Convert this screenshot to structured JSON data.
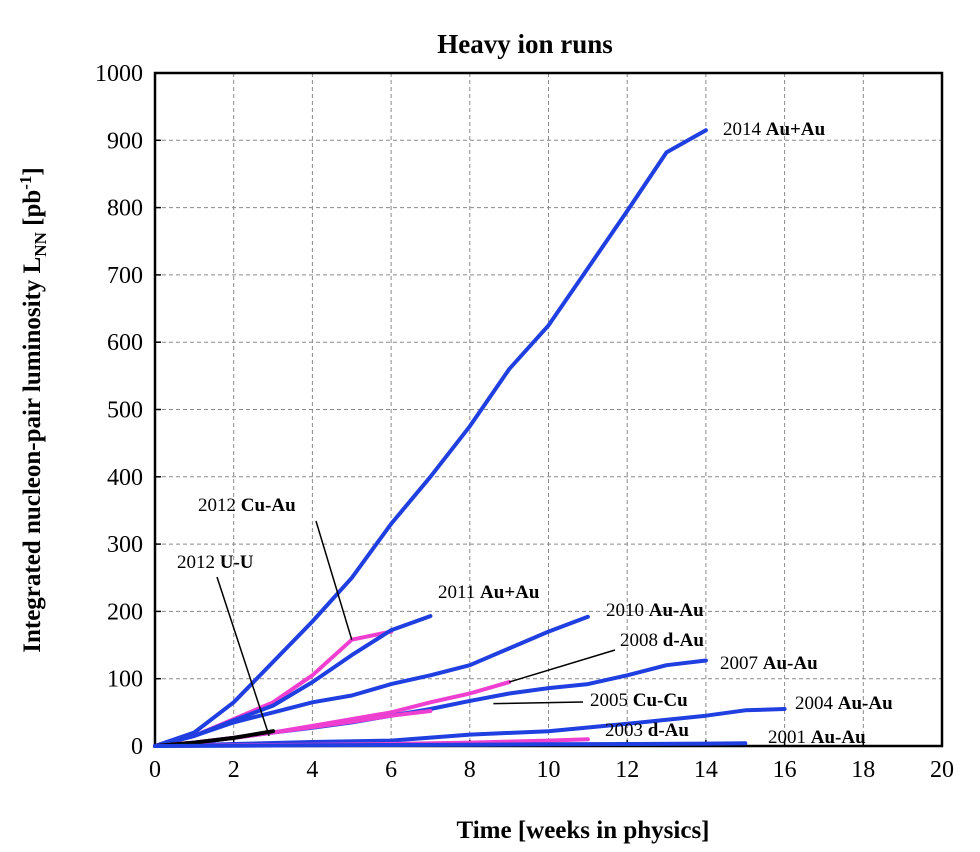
{
  "chart_data": {
    "type": "line",
    "title": "Heavy ion runs",
    "xlabel": "Time [weeks in physics]",
    "ylabel": {
      "main": "Integrated nucleon-pair luminosity L",
      "sub": "NN",
      "unit_open": " [pb",
      "unit_sup": "-1",
      "unit_close": "]"
    },
    "xlim": [
      0,
      20
    ],
    "ylim": [
      0,
      1000
    ],
    "xticks": [
      "0",
      "2",
      "4",
      "6",
      "8",
      "10",
      "12",
      "14",
      "16",
      "18",
      "20"
    ],
    "yticks": [
      "0",
      "100",
      "200",
      "300",
      "400",
      "500",
      "600",
      "700",
      "800",
      "900",
      "1000"
    ],
    "grid": true,
    "colors": {
      "blue": "#1f3fe0",
      "magenta": "#ef3fd0",
      "black": "#000000"
    },
    "series": [
      {
        "name": "2014 Au+Au",
        "year": "2014",
        "species": "Au+Au",
        "color": "#1f3fe0",
        "x": [
          0,
          1,
          2,
          3,
          4,
          5,
          6,
          7,
          8,
          9,
          10,
          11,
          12,
          13,
          14
        ],
        "y": [
          0,
          20,
          65,
          125,
          185,
          250,
          330,
          400,
          475,
          560,
          625,
          710,
          795,
          882,
          915
        ]
      },
      {
        "name": "2012 Cu-Au",
        "year": "2012",
        "species": "Cu-Au",
        "color": "#ef3fd0",
        "x": [
          0,
          1,
          2,
          3,
          4,
          5,
          6
        ],
        "y": [
          0,
          15,
          40,
          65,
          105,
          158,
          170
        ]
      },
      {
        "name": "2011 Au+Au",
        "year": "2011",
        "species": "Au+Au",
        "color": "#1f3fe0",
        "x": [
          0,
          1,
          2,
          3,
          4,
          5,
          6,
          7
        ],
        "y": [
          0,
          15,
          38,
          60,
          95,
          135,
          172,
          193
        ]
      },
      {
        "name": "2010 Au-Au",
        "year": "2010",
        "species": "Au-Au",
        "color": "#1f3fe0",
        "x": [
          0,
          1,
          2,
          3,
          4,
          5,
          6,
          7,
          8,
          9,
          10,
          11
        ],
        "y": [
          0,
          15,
          35,
          50,
          65,
          75,
          92,
          105,
          120,
          145,
          170,
          192
        ]
      },
      {
        "name": "2008 d-Au",
        "year": "2008",
        "species": "d-Au",
        "color": "#ef3fd0",
        "x": [
          0,
          1,
          2,
          3,
          4,
          5,
          6,
          7,
          8,
          9
        ],
        "y": [
          0,
          5,
          12,
          20,
          30,
          40,
          50,
          65,
          78,
          95
        ]
      },
      {
        "name": "2007 Au-Au",
        "year": "2007",
        "species": "Au-Au",
        "color": "#1f3fe0",
        "x": [
          0,
          1,
          2,
          3,
          4,
          5,
          6,
          7,
          8,
          9,
          10,
          11,
          12,
          13,
          14
        ],
        "y": [
          0,
          5,
          12,
          20,
          27,
          35,
          45,
          55,
          67,
          78,
          86,
          92,
          105,
          120,
          127
        ]
      },
      {
        "name": "2005 Cu-Cu",
        "year": "2005",
        "species": "Cu-Cu",
        "color": "#ef3fd0",
        "x": [
          0,
          1,
          2,
          3,
          4,
          5,
          6,
          7
        ],
        "y": [
          0,
          5,
          12,
          20,
          28,
          36,
          45,
          52
        ]
      },
      {
        "name": "2004 Au-Au",
        "year": "2004",
        "species": "Au-Au",
        "color": "#1f3fe0",
        "x": [
          0,
          2,
          4,
          6,
          8,
          10,
          12,
          14,
          15,
          16
        ],
        "y": [
          0,
          3,
          6,
          8,
          17,
          22,
          33,
          45,
          53,
          55
        ]
      },
      {
        "name": "2003 d-Au",
        "year": "2003",
        "species": "d-Au",
        "color": "#ef3fd0",
        "x": [
          0,
          2,
          4,
          6,
          8,
          10,
          11
        ],
        "y": [
          0,
          1,
          2,
          3,
          5,
          8,
          10
        ]
      },
      {
        "name": "2012 U-U",
        "year": "2012",
        "species": "U-U",
        "color": "#000000",
        "x": [
          0,
          1,
          2,
          3
        ],
        "y": [
          0,
          5,
          12,
          22
        ]
      },
      {
        "name": "2001 Au-Au",
        "year": "2001",
        "species": "Au-Au",
        "color": "#1f3fe0",
        "x": [
          0,
          2,
          4,
          6,
          8,
          10,
          12,
          14,
          15
        ],
        "y": [
          0,
          0.5,
          1,
          1.5,
          2,
          2.5,
          3,
          3.5,
          4
        ]
      }
    ],
    "annotations": [
      {
        "series": "2014 Au+Au",
        "year": "2014",
        "species": "Au+Au"
      },
      {
        "series": "2012 Cu-Au",
        "year": "2012",
        "species": "Cu-Au",
        "leader_to": [
          5,
          158
        ]
      },
      {
        "series": "2012 U-U",
        "year": "2012",
        "species": "U-U",
        "leader_to": [
          2.9,
          15
        ]
      },
      {
        "series": "2011 Au+Au",
        "year": "2011",
        "species": "Au+Au"
      },
      {
        "series": "2010 Au-Au",
        "year": "2010",
        "species": "Au-Au"
      },
      {
        "series": "2008 d-Au",
        "year": "2008",
        "species": "d-Au",
        "leader_to": [
          9,
          95
        ]
      },
      {
        "series": "2007 Au-Au",
        "year": "2007",
        "species": "Au-Au"
      },
      {
        "series": "2005 Cu-Cu",
        "year": "2005",
        "species": "Cu-Cu",
        "leader_to": [
          8.6,
          63
        ]
      },
      {
        "series": "2004 Au-Au",
        "year": "2004",
        "species": "Au-Au"
      },
      {
        "series": "2003 d-Au",
        "year": "2003",
        "species": "d-Au"
      },
      {
        "series": "2001 Au-Au",
        "year": "2001",
        "species": "Au-Au"
      }
    ]
  }
}
